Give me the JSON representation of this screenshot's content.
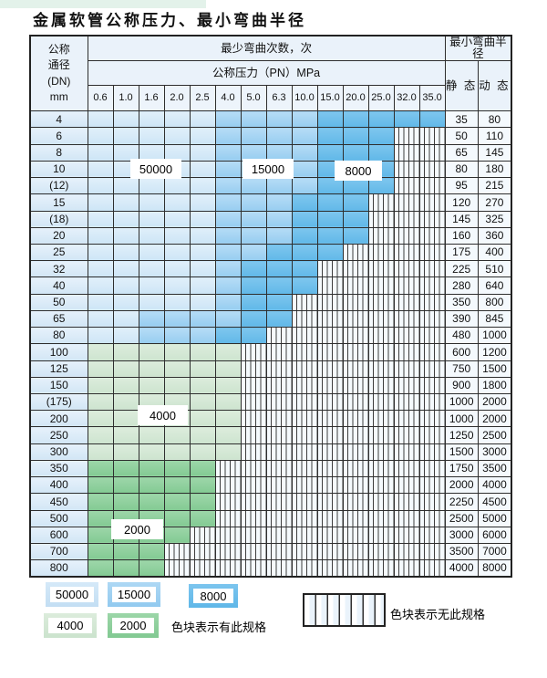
{
  "page": {
    "title": "金属软管公称压力、最小弯曲半径"
  },
  "colors": {
    "blue_50000": "#cde5f6",
    "blue_15000": "#97cdf0",
    "blue_8000": "#61b8e8",
    "green_4000": "#cde4cf",
    "green_2000": "#83ca93",
    "grid": "#2e2e2e"
  },
  "table": {
    "dn_header_lines": [
      "公称",
      "通径",
      "(DN)",
      "mm"
    ],
    "cycles_header": "最少弯曲次数，次",
    "pressure_header": "公称压力（PN）MPa",
    "pressure_values": [
      "0.6",
      "1.0",
      "1.6",
      "2.0",
      "2.5",
      "4.0",
      "5.0",
      "6.3",
      "10.0",
      "15.0",
      "20.0",
      "25.0",
      "32.0",
      "35.0"
    ],
    "radius_header": "最小弯曲半径",
    "static_label": "静 态",
    "dynamic_label": "动 态",
    "region_labels": {
      "b1": "50000",
      "b2": "15000",
      "b3": "8000",
      "g1": "4000",
      "g2": "2000"
    },
    "cell_legend": {
      "b1": 50000,
      "b2": 15000,
      "b3": 8000,
      "g1": 4000,
      "g2": 2000,
      "x": "无此规格"
    },
    "rows": [
      {
        "dn": "4",
        "cells": [
          "b1",
          "b1",
          "b1",
          "b1",
          "b1",
          "b2",
          "b2",
          "b2",
          "b2",
          "b3",
          "b3",
          "b3",
          "b3",
          "b3"
        ],
        "static": "35",
        "dynamic": "80"
      },
      {
        "dn": "6",
        "cells": [
          "b1",
          "b1",
          "b1",
          "b1",
          "b1",
          "b2",
          "b2",
          "b2",
          "b2",
          "b3",
          "b3",
          "b3",
          "x",
          "x"
        ],
        "static": "50",
        "dynamic": "110"
      },
      {
        "dn": "8",
        "cells": [
          "b1",
          "b1",
          "b1",
          "b1",
          "b1",
          "b2",
          "b2",
          "b2",
          "b2",
          "b3",
          "b3",
          "b3",
          "x",
          "x"
        ],
        "static": "65",
        "dynamic": "145"
      },
      {
        "dn": "10",
        "cells": [
          "b1",
          "b1",
          "b1",
          "b1",
          "b1",
          "b2",
          "b2",
          "b2",
          "b2",
          "b3",
          "b3",
          "b3",
          "x",
          "x"
        ],
        "static": "80",
        "dynamic": "180"
      },
      {
        "dn": "(12)",
        "cells": [
          "b1",
          "b1",
          "b1",
          "b1",
          "b1",
          "b2",
          "b2",
          "b2",
          "b2",
          "b3",
          "b3",
          "b3",
          "x",
          "x"
        ],
        "static": "95",
        "dynamic": "215"
      },
      {
        "dn": "15",
        "cells": [
          "b1",
          "b1",
          "b1",
          "b1",
          "b1",
          "b2",
          "b2",
          "b2",
          "b3",
          "b3",
          "b3",
          "x",
          "x",
          "x"
        ],
        "static": "120",
        "dynamic": "270"
      },
      {
        "dn": "(18)",
        "cells": [
          "b1",
          "b1",
          "b1",
          "b1",
          "b1",
          "b2",
          "b2",
          "b2",
          "b3",
          "b3",
          "b3",
          "x",
          "x",
          "x"
        ],
        "static": "145",
        "dynamic": "325"
      },
      {
        "dn": "20",
        "cells": [
          "b1",
          "b1",
          "b1",
          "b1",
          "b1",
          "b2",
          "b2",
          "b2",
          "b3",
          "b3",
          "b3",
          "x",
          "x",
          "x"
        ],
        "static": "160",
        "dynamic": "360"
      },
      {
        "dn": "25",
        "cells": [
          "b1",
          "b1",
          "b1",
          "b1",
          "b1",
          "b2",
          "b2",
          "b3",
          "b3",
          "b3",
          "x",
          "x",
          "x",
          "x"
        ],
        "static": "175",
        "dynamic": "400"
      },
      {
        "dn": "32",
        "cells": [
          "b1",
          "b1",
          "b1",
          "b1",
          "b1",
          "b2",
          "b3",
          "b3",
          "b3",
          "x",
          "x",
          "x",
          "x",
          "x"
        ],
        "static": "225",
        "dynamic": "510"
      },
      {
        "dn": "40",
        "cells": [
          "b1",
          "b1",
          "b1",
          "b1",
          "b1",
          "b2",
          "b3",
          "b3",
          "b3",
          "x",
          "x",
          "x",
          "x",
          "x"
        ],
        "static": "280",
        "dynamic": "640"
      },
      {
        "dn": "50",
        "cells": [
          "b1",
          "b1",
          "b1",
          "b1",
          "b1",
          "b2",
          "b3",
          "b3",
          "x",
          "x",
          "x",
          "x",
          "x",
          "x"
        ],
        "static": "350",
        "dynamic": "800"
      },
      {
        "dn": "65",
        "cells": [
          "b1",
          "b1",
          "b2",
          "b2",
          "b2",
          "b2",
          "b3",
          "b3",
          "x",
          "x",
          "x",
          "x",
          "x",
          "x"
        ],
        "static": "390",
        "dynamic": "845"
      },
      {
        "dn": "80",
        "cells": [
          "b1",
          "b1",
          "b2",
          "b2",
          "b2",
          "b3",
          "b3",
          "x",
          "x",
          "x",
          "x",
          "x",
          "x",
          "x"
        ],
        "static": "480",
        "dynamic": "1000"
      },
      {
        "dn": "100",
        "cells": [
          "g1",
          "g1",
          "g1",
          "g1",
          "g1",
          "g1",
          "x",
          "x",
          "x",
          "x",
          "x",
          "x",
          "x",
          "x"
        ],
        "static": "600",
        "dynamic": "1200"
      },
      {
        "dn": "125",
        "cells": [
          "g1",
          "g1",
          "g1",
          "g1",
          "g1",
          "g1",
          "x",
          "x",
          "x",
          "x",
          "x",
          "x",
          "x",
          "x"
        ],
        "static": "750",
        "dynamic": "1500"
      },
      {
        "dn": "150",
        "cells": [
          "g1",
          "g1",
          "g1",
          "g1",
          "g1",
          "g1",
          "x",
          "x",
          "x",
          "x",
          "x",
          "x",
          "x",
          "x"
        ],
        "static": "900",
        "dynamic": "1800"
      },
      {
        "dn": "(175)",
        "cells": [
          "g1",
          "g1",
          "g1",
          "g1",
          "g1",
          "g1",
          "x",
          "x",
          "x",
          "x",
          "x",
          "x",
          "x",
          "x"
        ],
        "static": "1000",
        "dynamic": "2000"
      },
      {
        "dn": "200",
        "cells": [
          "g1",
          "g1",
          "g1",
          "g1",
          "g1",
          "g1",
          "x",
          "x",
          "x",
          "x",
          "x",
          "x",
          "x",
          "x"
        ],
        "static": "1000",
        "dynamic": "2000"
      },
      {
        "dn": "250",
        "cells": [
          "g1",
          "g1",
          "g1",
          "g1",
          "g1",
          "g1",
          "x",
          "x",
          "x",
          "x",
          "x",
          "x",
          "x",
          "x"
        ],
        "static": "1250",
        "dynamic": "2500"
      },
      {
        "dn": "300",
        "cells": [
          "g1",
          "g1",
          "g1",
          "g1",
          "g1",
          "g1",
          "x",
          "x",
          "x",
          "x",
          "x",
          "x",
          "x",
          "x"
        ],
        "static": "1500",
        "dynamic": "3000"
      },
      {
        "dn": "350",
        "cells": [
          "g2",
          "g2",
          "g2",
          "g2",
          "g2",
          "x",
          "x",
          "x",
          "x",
          "x",
          "x",
          "x",
          "x",
          "x"
        ],
        "static": "1750",
        "dynamic": "3500"
      },
      {
        "dn": "400",
        "cells": [
          "g2",
          "g2",
          "g2",
          "g2",
          "g2",
          "x",
          "x",
          "x",
          "x",
          "x",
          "x",
          "x",
          "x",
          "x"
        ],
        "static": "2000",
        "dynamic": "4000"
      },
      {
        "dn": "450",
        "cells": [
          "g2",
          "g2",
          "g2",
          "g2",
          "g2",
          "x",
          "x",
          "x",
          "x",
          "x",
          "x",
          "x",
          "x",
          "x"
        ],
        "static": "2250",
        "dynamic": "4500"
      },
      {
        "dn": "500",
        "cells": [
          "g2",
          "g2",
          "g2",
          "g2",
          "g2",
          "x",
          "x",
          "x",
          "x",
          "x",
          "x",
          "x",
          "x",
          "x"
        ],
        "static": "2500",
        "dynamic": "5000"
      },
      {
        "dn": "600",
        "cells": [
          "g2",
          "g2",
          "g2",
          "g2",
          "x",
          "x",
          "x",
          "x",
          "x",
          "x",
          "x",
          "x",
          "x",
          "x"
        ],
        "static": "3000",
        "dynamic": "6000"
      },
      {
        "dn": "700",
        "cells": [
          "g2",
          "g2",
          "g2",
          "x",
          "x",
          "x",
          "x",
          "x",
          "x",
          "x",
          "x",
          "x",
          "x",
          "x"
        ],
        "static": "3500",
        "dynamic": "7000"
      },
      {
        "dn": "800",
        "cells": [
          "g2",
          "g2",
          "g2",
          "x",
          "x",
          "x",
          "x",
          "x",
          "x",
          "x",
          "x",
          "x",
          "x",
          "x"
        ],
        "static": "4000",
        "dynamic": "8000"
      }
    ]
  },
  "legend": {
    "items": [
      {
        "value": "50000",
        "type": "b1"
      },
      {
        "value": "15000",
        "type": "b2"
      },
      {
        "value": "8000",
        "type": "b3"
      },
      {
        "value": "4000",
        "type": "g1"
      },
      {
        "value": "2000",
        "type": "g2"
      }
    ],
    "present_text": "色块表示有此规格",
    "absent_text": "色块表示无此规格"
  }
}
